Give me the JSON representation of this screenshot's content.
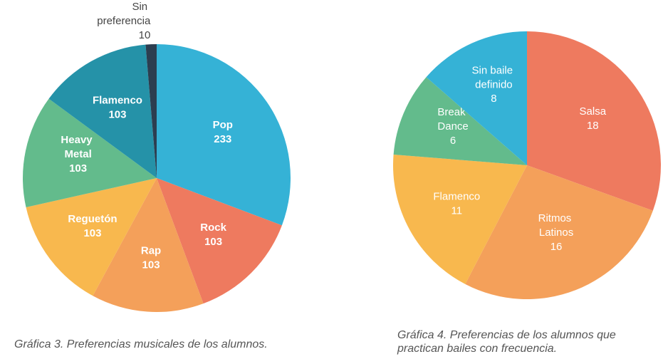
{
  "chart_data": [
    {
      "type": "pie",
      "caption": "Gráfica 3. Preferencias musicales de los alumnos.",
      "categories": [
        "Pop",
        "Rock",
        "Rap",
        "Reguetón",
        "Heavy Metal",
        "Flamenco",
        "Sin preferencia"
      ],
      "values": [
        233,
        103,
        103,
        103,
        103,
        103,
        10
      ],
      "colors": [
        "#35b2d6",
        "#ee7a5f",
        "#f4a05a",
        "#f8b84e",
        "#63bb8c",
        "#2592a8",
        "#2c3e50"
      ]
    },
    {
      "type": "pie",
      "caption": "Gráfica 4. Preferencias de los alumnos que practican bailes con frecuencia.",
      "categories": [
        "Salsa",
        "Ritmos Latinos",
        "Flamenco",
        "Break Dance",
        "Sin baile definido"
      ],
      "values": [
        18,
        16,
        11,
        6,
        8
      ],
      "colors": [
        "#ee7a5f",
        "#f4a05a",
        "#f8b84e",
        "#63bb8c",
        "#35b2d6"
      ]
    }
  ]
}
